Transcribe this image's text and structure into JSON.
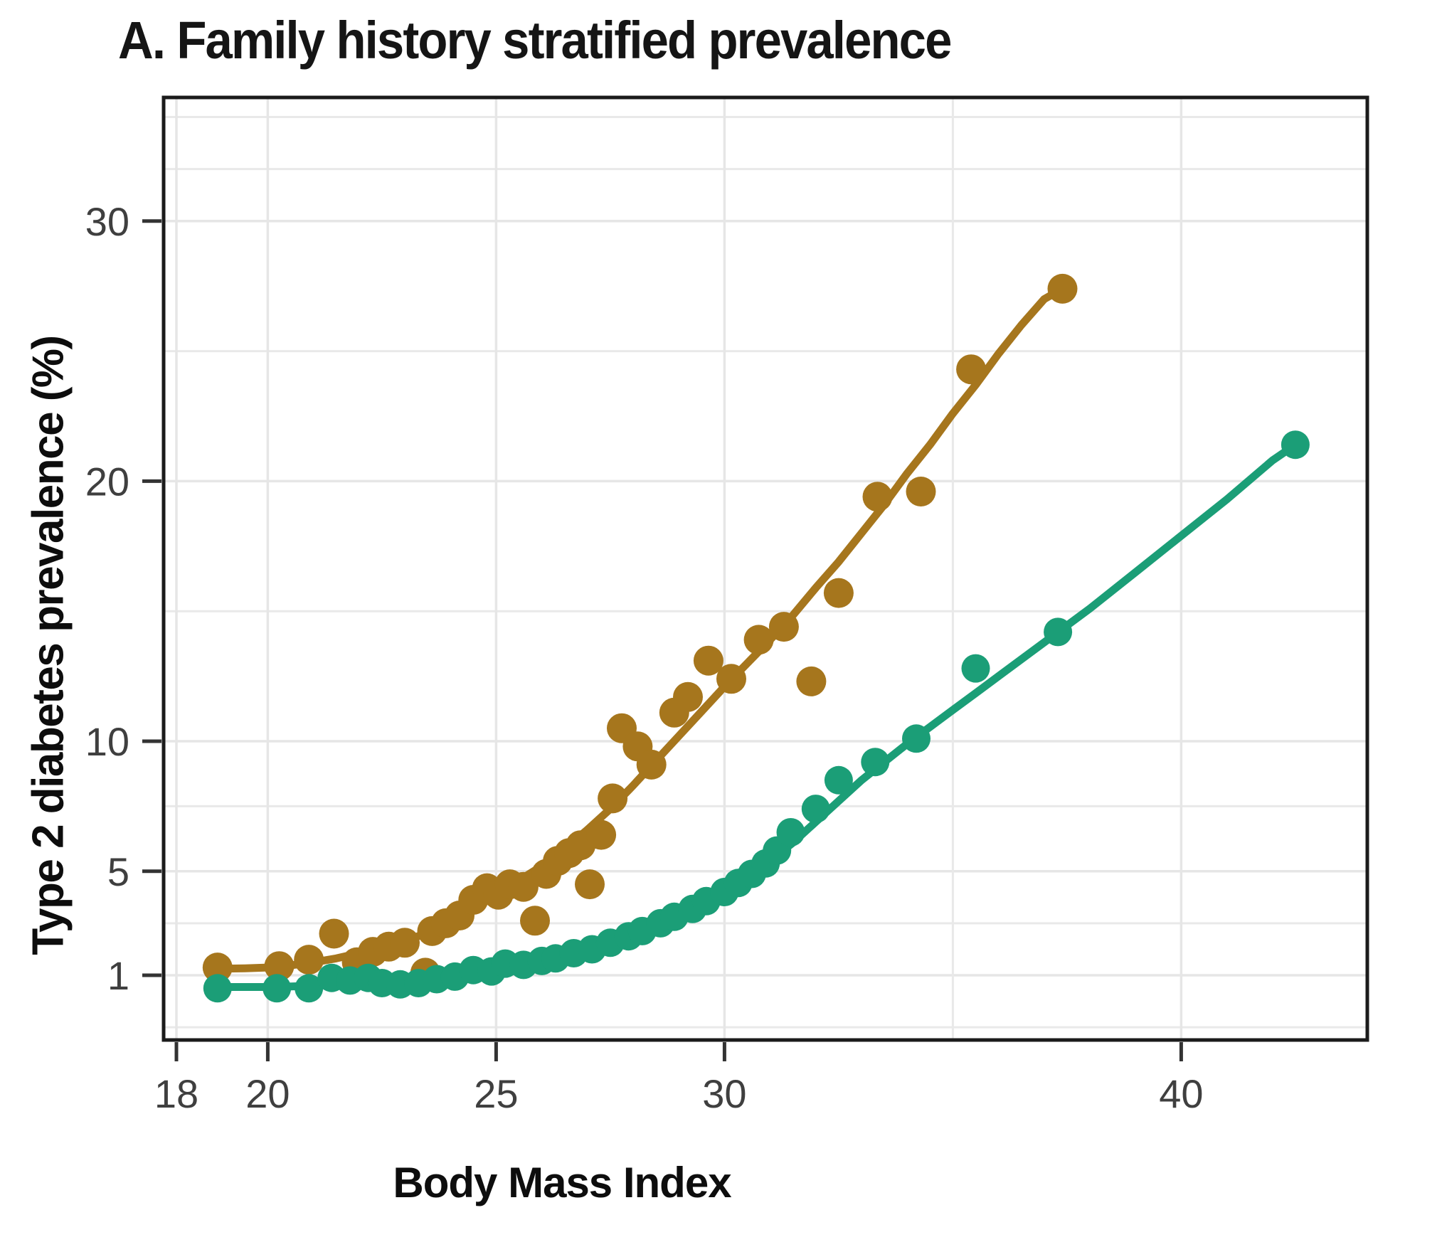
{
  "title": "A. Family history stratified prevalence",
  "chart_data": {
    "type": "scatter",
    "title": "A. Family history stratified prevalence",
    "xlabel": "Body Mass Index",
    "ylabel": "Type 2 diabetes prevalence (%)",
    "grid": true,
    "legend": "none",
    "x_scale": "linear",
    "y_scale": "linear",
    "xlim": [
      17.72,
      44.07
    ],
    "ylim": [
      -1.49,
      34.75
    ],
    "x_ticks": [
      18,
      20,
      25,
      30,
      40
    ],
    "y_ticks": [
      1,
      5,
      10,
      20,
      30
    ],
    "x_minor_gridlines": [
      35
    ],
    "y_minor_gridlines": [
      -1,
      3,
      7.5,
      15,
      25,
      32,
      34
    ],
    "axis_color": "#1b1b1b",
    "tick_color": "#333333",
    "series": [
      {
        "name": "family-history-positive-brown",
        "color": "#A6761D",
        "dot_radius": 21,
        "line_width": 11,
        "points": [
          [
            18.9,
            1.3
          ],
          [
            20.25,
            1.35
          ],
          [
            20.9,
            1.6
          ],
          [
            21.45,
            2.6
          ],
          [
            21.95,
            1.5
          ],
          [
            22.3,
            1.9
          ],
          [
            22.65,
            2.1
          ],
          [
            23.0,
            2.25
          ],
          [
            23.45,
            1.1
          ],
          [
            23.6,
            2.7
          ],
          [
            23.9,
            3.0
          ],
          [
            24.2,
            3.3
          ],
          [
            24.5,
            3.9
          ],
          [
            24.8,
            4.35
          ],
          [
            25.05,
            4.1
          ],
          [
            25.3,
            4.5
          ],
          [
            25.6,
            4.4
          ],
          [
            25.85,
            3.1
          ],
          [
            26.1,
            4.9
          ],
          [
            26.35,
            5.4
          ],
          [
            26.6,
            5.7
          ],
          [
            26.85,
            6.0
          ],
          [
            27.05,
            4.5
          ],
          [
            27.3,
            6.4
          ],
          [
            27.55,
            7.8
          ],
          [
            27.75,
            10.5
          ],
          [
            28.1,
            9.8
          ],
          [
            28.4,
            9.1
          ],
          [
            28.9,
            11.1
          ],
          [
            29.2,
            11.7
          ],
          [
            29.65,
            13.1
          ],
          [
            30.15,
            12.4
          ],
          [
            30.75,
            13.9
          ],
          [
            31.3,
            14.4
          ],
          [
            31.9,
            12.3
          ],
          [
            32.5,
            15.7
          ],
          [
            33.35,
            19.4
          ],
          [
            34.3,
            19.6
          ],
          [
            35.4,
            24.3
          ],
          [
            37.4,
            27.4
          ]
        ],
        "trend": [
          [
            18.85,
            1.25
          ],
          [
            19.5,
            1.27
          ],
          [
            20,
            1.3
          ],
          [
            20.5,
            1.38
          ],
          [
            21,
            1.5
          ],
          [
            21.5,
            1.65
          ],
          [
            22,
            1.85
          ],
          [
            22.5,
            2.05
          ],
          [
            23,
            2.3
          ],
          [
            23.5,
            2.65
          ],
          [
            24,
            3.1
          ],
          [
            24.5,
            3.6
          ],
          [
            25,
            4.1
          ],
          [
            25.5,
            4.65
          ],
          [
            26,
            5.2
          ],
          [
            26.5,
            5.85
          ],
          [
            27,
            6.6
          ],
          [
            27.5,
            7.4
          ],
          [
            28,
            8.3
          ],
          [
            28.5,
            9.25
          ],
          [
            29,
            10.2
          ],
          [
            29.5,
            11.15
          ],
          [
            30,
            12.1
          ],
          [
            30.5,
            13.0
          ],
          [
            31,
            13.9
          ],
          [
            31.5,
            14.85
          ],
          [
            32,
            15.9
          ],
          [
            32.5,
            16.9
          ],
          [
            33,
            18.0
          ],
          [
            33.5,
            19.1
          ],
          [
            34,
            20.3
          ],
          [
            34.5,
            21.4
          ],
          [
            35,
            22.6
          ],
          [
            35.5,
            23.7
          ],
          [
            36,
            24.9
          ],
          [
            36.5,
            26.0
          ],
          [
            37,
            27.0
          ],
          [
            37.4,
            27.4
          ]
        ]
      },
      {
        "name": "family-history-negative-green",
        "color": "#1B9E77",
        "dot_radius": 20,
        "line_width": 11,
        "points": [
          [
            18.9,
            0.5
          ],
          [
            20.2,
            0.5
          ],
          [
            20.9,
            0.5
          ],
          [
            21.4,
            0.9
          ],
          [
            21.8,
            0.8
          ],
          [
            22.2,
            0.9
          ],
          [
            22.5,
            0.7
          ],
          [
            22.9,
            0.65
          ],
          [
            23.3,
            0.7
          ],
          [
            23.7,
            0.85
          ],
          [
            24.1,
            0.95
          ],
          [
            24.5,
            1.2
          ],
          [
            24.9,
            1.15
          ],
          [
            25.2,
            1.45
          ],
          [
            25.6,
            1.4
          ],
          [
            26.0,
            1.55
          ],
          [
            26.3,
            1.65
          ],
          [
            26.7,
            1.85
          ],
          [
            27.1,
            2.0
          ],
          [
            27.5,
            2.25
          ],
          [
            27.9,
            2.5
          ],
          [
            28.2,
            2.7
          ],
          [
            28.6,
            3.0
          ],
          [
            28.9,
            3.25
          ],
          [
            29.3,
            3.55
          ],
          [
            29.6,
            3.85
          ],
          [
            30.0,
            4.2
          ],
          [
            30.3,
            4.55
          ],
          [
            30.6,
            4.9
          ],
          [
            30.9,
            5.3
          ],
          [
            31.15,
            5.8
          ],
          [
            31.45,
            6.5
          ],
          [
            32.0,
            7.4
          ],
          [
            32.5,
            8.5
          ],
          [
            33.3,
            9.2
          ],
          [
            34.2,
            10.1
          ],
          [
            35.5,
            12.8
          ],
          [
            37.3,
            14.2
          ],
          [
            42.5,
            21.4
          ]
        ],
        "trend": [
          [
            18.85,
            0.55
          ],
          [
            19.5,
            0.55
          ],
          [
            20,
            0.55
          ],
          [
            20.5,
            0.57
          ],
          [
            21,
            0.6
          ],
          [
            21.5,
            0.63
          ],
          [
            22,
            0.67
          ],
          [
            22.5,
            0.72
          ],
          [
            23,
            0.78
          ],
          [
            23.5,
            0.85
          ],
          [
            24,
            0.95
          ],
          [
            24.5,
            1.08
          ],
          [
            25,
            1.25
          ],
          [
            25.5,
            1.4
          ],
          [
            26,
            1.6
          ],
          [
            26.5,
            1.8
          ],
          [
            27,
            2.0
          ],
          [
            27.5,
            2.25
          ],
          [
            28,
            2.55
          ],
          [
            28.5,
            2.9
          ],
          [
            29,
            3.3
          ],
          [
            29.5,
            3.7
          ],
          [
            30,
            4.2
          ],
          [
            30.5,
            4.75
          ],
          [
            31,
            5.4
          ],
          [
            31.5,
            6.1
          ],
          [
            32,
            6.9
          ],
          [
            32.5,
            7.7
          ],
          [
            33,
            8.5
          ],
          [
            33.5,
            9.2
          ],
          [
            34,
            9.9
          ],
          [
            34.5,
            10.55
          ],
          [
            35,
            11.2
          ],
          [
            35.5,
            11.85
          ],
          [
            36,
            12.5
          ],
          [
            37,
            13.8
          ],
          [
            38,
            15.1
          ],
          [
            39,
            16.5
          ],
          [
            40,
            17.9
          ],
          [
            41,
            19.3
          ],
          [
            42,
            20.8
          ],
          [
            42.5,
            21.4
          ]
        ]
      }
    ]
  }
}
